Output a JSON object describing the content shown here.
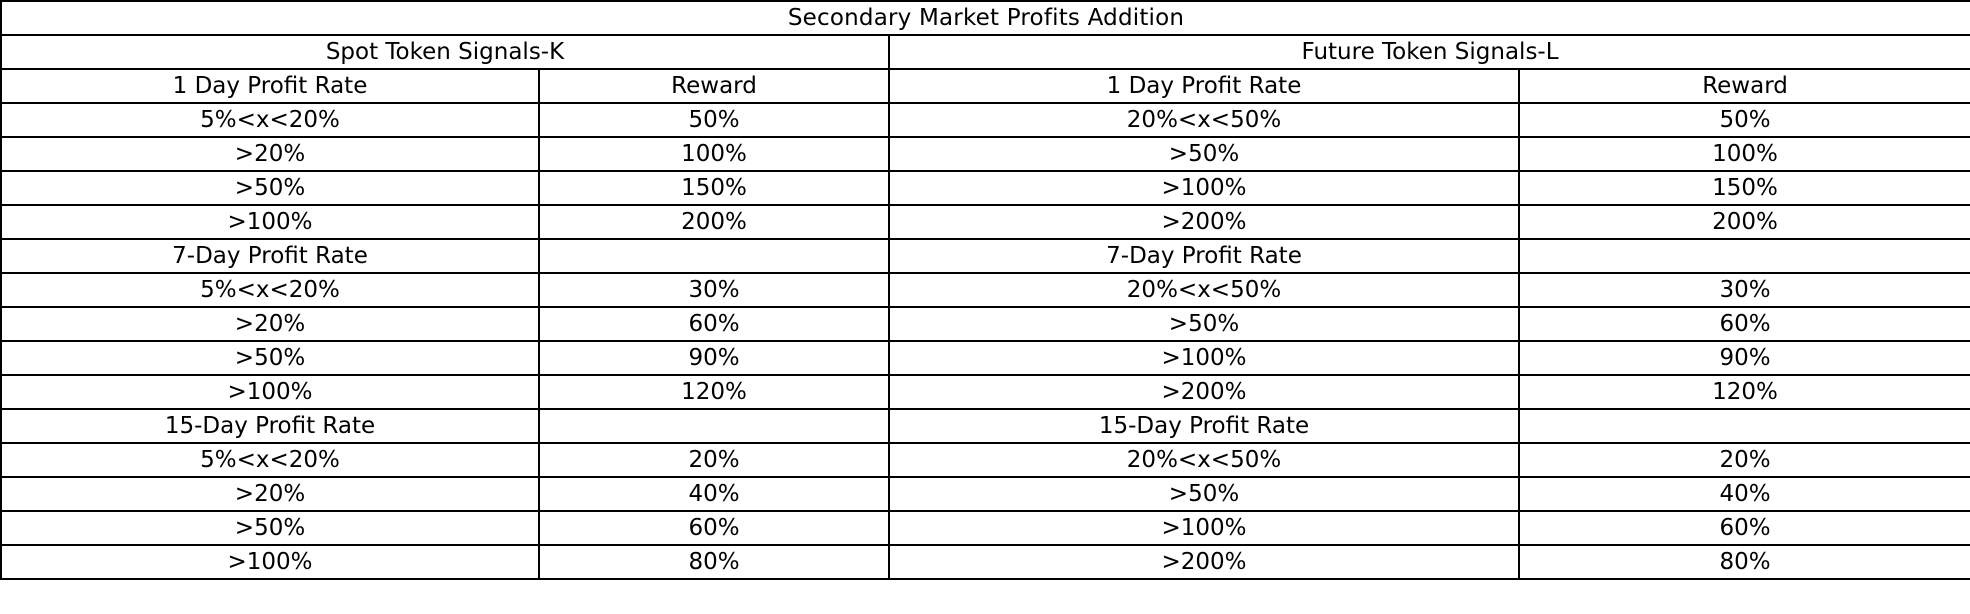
{
  "table": {
    "title": "Secondary Market Profits Addition",
    "spot": {
      "heading": "Spot Token Signals-K",
      "col_rate": "1 Day Profit Rate",
      "col_reward": "Reward",
      "groups": [
        {
          "label": "",
          "rows": [
            {
              "rate": "5%<x<20%",
              "reward": "50%"
            },
            {
              "rate": ">20%",
              "reward": "100%"
            },
            {
              "rate": ">50%",
              "reward": "150%"
            },
            {
              "rate": ">100%",
              "reward": "200%"
            }
          ]
        },
        {
          "label": "7-Day Profit Rate",
          "rows": [
            {
              "rate": "5%<x<20%",
              "reward": "30%"
            },
            {
              "rate": ">20%",
              "reward": "60%"
            },
            {
              "rate": ">50%",
              "reward": "90%"
            },
            {
              "rate": ">100%",
              "reward": "120%"
            }
          ]
        },
        {
          "label": "15-Day Profit Rate",
          "rows": [
            {
              "rate": "5%<x<20%",
              "reward": "20%"
            },
            {
              "rate": ">20%",
              "reward": "40%"
            },
            {
              "rate": ">50%",
              "reward": "60%"
            },
            {
              "rate": ">100%",
              "reward": "80%"
            }
          ]
        }
      ]
    },
    "future": {
      "heading": "Future Token Signals-L",
      "col_rate": "1 Day Profit Rate",
      "col_reward": "Reward",
      "groups": [
        {
          "label": "",
          "rows": [
            {
              "rate": "20%<x<50%",
              "reward": "50%"
            },
            {
              "rate": ">50%",
              "reward": "100%"
            },
            {
              "rate": ">100%",
              "reward": "150%"
            },
            {
              "rate": ">200%",
              "reward": "200%"
            }
          ]
        },
        {
          "label": "7-Day Profit Rate",
          "rows": [
            {
              "rate": "20%<x<50%",
              "reward": "30%"
            },
            {
              "rate": ">50%",
              "reward": "60%"
            },
            {
              "rate": ">100%",
              "reward": "90%"
            },
            {
              "rate": ">200%",
              "reward": "120%"
            }
          ]
        },
        {
          "label": "15-Day Profit Rate",
          "rows": [
            {
              "rate": "20%<x<50%",
              "reward": "20%"
            },
            {
              "rate": ">50%",
              "reward": "40%"
            },
            {
              "rate": ">100%",
              "reward": "60%"
            },
            {
              "rate": ">200%",
              "reward": "80%"
            }
          ]
        }
      ]
    }
  }
}
